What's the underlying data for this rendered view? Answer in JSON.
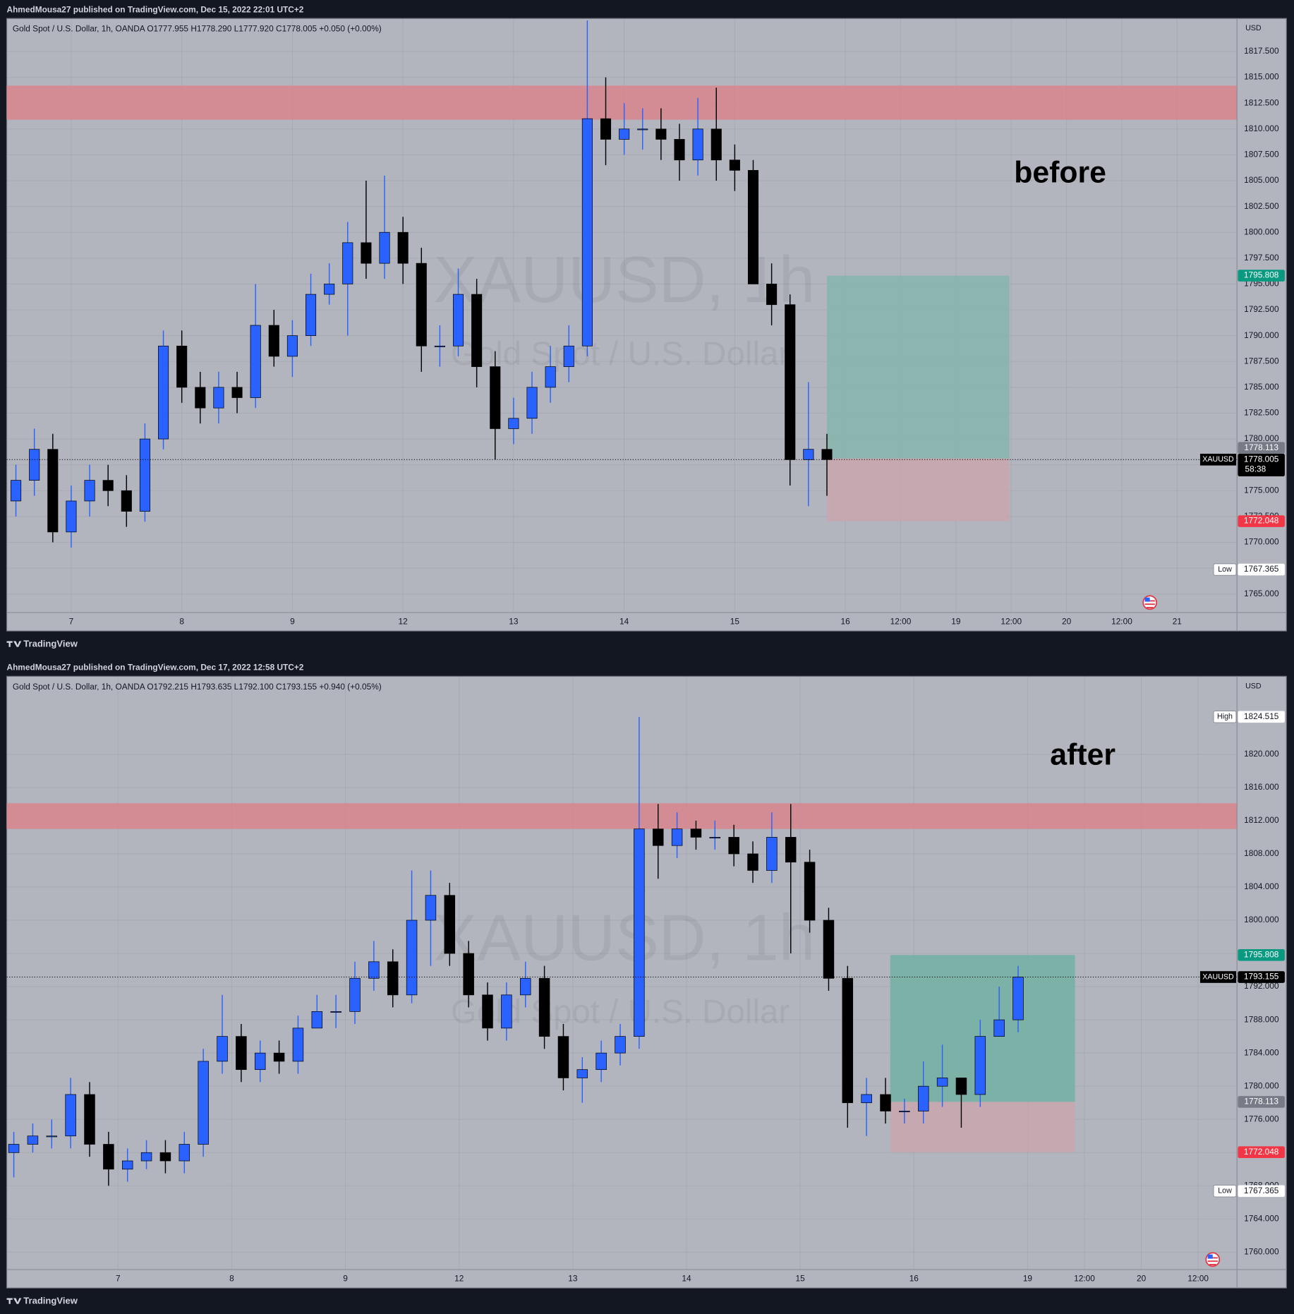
{
  "chart_data": [
    {
      "type": "candlestick",
      "caption": "AhmedMousa27 published on TradingView.com, Dec 15, 2022 22:01 UTC+2",
      "title": "Gold Spot / U.S. Dollar, 1h, OANDA  O1777.955  H1778.290  L1777.920  C1778.005  +0.050 (+0.00%)",
      "watermark": [
        "XAUUSD, 1h",
        "Gold Spot / U.S. Dollar"
      ],
      "annotation": "before",
      "currency": "USD",
      "footer": "TradingView",
      "symbol": "XAUUSD",
      "countdown": "58:38",
      "x": [
        -12,
        -8,
        -4,
        0,
        4,
        8,
        12,
        16,
        20,
        24,
        28,
        32,
        36,
        40,
        44,
        48,
        52,
        56,
        60,
        64,
        68,
        72,
        76,
        80,
        84,
        88,
        92,
        96,
        100,
        104,
        108,
        112,
        116,
        120,
        124,
        128,
        132,
        136,
        140,
        144,
        148,
        152,
        156,
        160,
        164
      ],
      "open": [
        1774,
        1776,
        1779,
        1771,
        1774,
        1776,
        1775,
        1773,
        1780,
        1789,
        1785,
        1783,
        1785,
        1784,
        1791,
        1788,
        1790,
        1794,
        1795,
        1799,
        1797,
        1800,
        1797,
        1789,
        1789,
        1794,
        1787,
        1781,
        1782,
        1785,
        1787,
        1789,
        1811,
        1809,
        1810,
        1810,
        1809,
        1807,
        1810,
        1807,
        1806,
        1795,
        1793,
        1778,
        1779
      ],
      "high": [
        1777.5,
        1781,
        1780.5,
        1775.5,
        1777.5,
        1777.5,
        1776.5,
        1781.5,
        1790.5,
        1790.5,
        1786.5,
        1786.5,
        1786.5,
        1795,
        1792.5,
        1791.5,
        1796,
        1797,
        1801,
        1805,
        1805.5,
        1801.5,
        1798.5,
        1791,
        1796.5,
        1795.5,
        1788.5,
        1784,
        1786.5,
        1789,
        1791,
        1820.5,
        1815,
        1812.5,
        1812,
        1812,
        1810.5,
        1813,
        1814,
        1808.5,
        1807,
        1797,
        1794,
        1785.5,
        1780.5
      ],
      "low": [
        1772.5,
        1774.5,
        1770,
        1769.5,
        1772.5,
        1773.5,
        1771.5,
        1772,
        1779,
        1783.5,
        1781.5,
        1781.5,
        1782.5,
        1783,
        1787,
        1786,
        1789,
        1793,
        1790,
        1795.5,
        1795.5,
        1795,
        1786.5,
        1787,
        1788,
        1785,
        1778,
        1779.5,
        1780.5,
        1783.5,
        1785.5,
        1788,
        1806.5,
        1807.5,
        1808,
        1807,
        1805,
        1805.5,
        1805,
        1804,
        1795,
        1791,
        1775.5,
        1773.5,
        1774.5
      ],
      "close": [
        1776,
        1779,
        1771,
        1774,
        1776,
        1775,
        1773,
        1780,
        1789,
        1785,
        1783,
        1785,
        1784,
        1791,
        1788,
        1790,
        1794,
        1795,
        1799,
        1797,
        1800,
        1797,
        1789,
        1789,
        1794,
        1787,
        1781,
        1782,
        1785,
        1787,
        1789,
        1811,
        1809,
        1810,
        1810,
        1809,
        1807,
        1810,
        1807,
        1806,
        1795,
        1793,
        1778,
        1779,
        1778.005
      ],
      "up_color": "#2962ff",
      "down_color": "#000000",
      "xlim": [
        -14,
        253
      ],
      "ylim": [
        1763.2,
        1820.7
      ],
      "xticks": [
        {
          "value": 0,
          "label": "7"
        },
        {
          "value": 24,
          "label": "8"
        },
        {
          "value": 48,
          "label": "9"
        },
        {
          "value": 72,
          "label": "12"
        },
        {
          "value": 96,
          "label": "13"
        },
        {
          "value": 120,
          "label": "14"
        },
        {
          "value": 144,
          "label": "15"
        },
        {
          "value": 168,
          "label": "16"
        },
        {
          "value": 180,
          "label": "12:00"
        },
        {
          "value": 192,
          "label": "19"
        },
        {
          "value": 204,
          "label": "12:00"
        },
        {
          "value": 216,
          "label": "20"
        },
        {
          "value": 228,
          "label": "12:00"
        },
        {
          "value": 240,
          "label": "21"
        }
      ],
      "yticks": [
        {
          "value": 1765,
          "label": "1765.000"
        },
        {
          "value": 1767.5,
          "label": "1767.500"
        },
        {
          "value": 1770,
          "label": "1770.000"
        },
        {
          "value": 1772.5,
          "label": "1772.500"
        },
        {
          "value": 1775,
          "label": "1775.000"
        },
        {
          "value": 1777.5,
          "label": "1777.500"
        },
        {
          "value": 1780,
          "label": "1780.000"
        },
        {
          "value": 1782.5,
          "label": "1782.500"
        },
        {
          "value": 1785,
          "label": "1785.000"
        },
        {
          "value": 1787.5,
          "label": "1787.500"
        },
        {
          "value": 1790,
          "label": "1790.000"
        },
        {
          "value": 1792.5,
          "label": "1792.500"
        },
        {
          "value": 1795,
          "label": "1795.000"
        },
        {
          "value": 1797.5,
          "label": "1797.500"
        },
        {
          "value": 1800,
          "label": "1800.000"
        },
        {
          "value": 1802.5,
          "label": "1802.500"
        },
        {
          "value": 1805,
          "label": "1805.000"
        },
        {
          "value": 1807.5,
          "label": "1807.500"
        },
        {
          "value": 1810,
          "label": "1810.000"
        },
        {
          "value": 1812.5,
          "label": "1812.500"
        },
        {
          "value": 1815,
          "label": "1815.000"
        },
        {
          "value": 1817.5,
          "label": "1817.500"
        }
      ],
      "grid": true,
      "zones": [
        {
          "from": 1810.9,
          "to": 1814.2,
          "color": "#d8848d"
        }
      ],
      "position": {
        "x": [
          164,
          203.6
        ],
        "entry": 1778.113,
        "target": 1795.808,
        "stop": 1772.048,
        "target_color": "#86b5ad",
        "stop_color": "#c8a6ae"
      },
      "extremes": [
        {
          "label": "Low",
          "value": 1767.365
        }
      ]
    },
    {
      "type": "candlestick",
      "caption": "AhmedMousa27 published on TradingView.com, Dec 17, 2022 12:58 UTC+2",
      "title": "Gold Spot / U.S. Dollar, 1h, OANDA  O1792.215  H1793.635  L1792.100  C1793.155  +0.940 (+0.05%)",
      "watermark": [
        "XAUUSD, 1h",
        "Gold Spot / U.S. Dollar"
      ],
      "annotation": "after",
      "currency": "USD",
      "footer": "TradingView",
      "symbol": "XAUUSD",
      "x": [
        -22,
        -18,
        -14,
        -10,
        -6,
        -2,
        2,
        6,
        10,
        14,
        18,
        22,
        26,
        30,
        34,
        38,
        42,
        46,
        50,
        54,
        58,
        62,
        66,
        70,
        74,
        78,
        82,
        86,
        90,
        94,
        98,
        102,
        106,
        110,
        114,
        118,
        122,
        126,
        130,
        134,
        138,
        142,
        146,
        150,
        154,
        158,
        162,
        166,
        170,
        174,
        178,
        182,
        186,
        190
      ],
      "open": [
        1772,
        1773,
        1774,
        1774,
        1779,
        1773,
        1770,
        1771,
        1772,
        1771,
        1773,
        1783,
        1786,
        1782,
        1784,
        1783,
        1787,
        1789,
        1789,
        1793,
        1795,
        1791,
        1800,
        1803,
        1796,
        1791,
        1787,
        1791,
        1793,
        1786,
        1781,
        1782,
        1784,
        1786,
        1811,
        1809,
        1811,
        1810,
        1810,
        1808,
        1806,
        1810,
        1807,
        1800,
        1793,
        1778,
        1779,
        1777,
        1777,
        1780,
        1781,
        1779,
        1786,
        1788
      ],
      "high": [
        1774.5,
        1775.5,
        1776,
        1781,
        1780.5,
        1774.5,
        1772.5,
        1773.5,
        1773.5,
        1774.5,
        1784.5,
        1791,
        1787.5,
        1785.5,
        1785.5,
        1788.5,
        1791,
        1791,
        1795,
        1797.5,
        1796.5,
        1806,
        1806,
        1804.5,
        1797.5,
        1792.5,
        1792.5,
        1795,
        1794.5,
        1787.5,
        1783.5,
        1785.5,
        1787.5,
        1824.5,
        1814,
        1813,
        1812,
        1812,
        1811.5,
        1809.5,
        1813,
        1814,
        1808.5,
        1801.5,
        1794.5,
        1781,
        1781,
        1778.5,
        1783,
        1785,
        1781,
        1788,
        1792,
        1794.5
      ],
      "low": [
        1769,
        1772,
        1772.5,
        1772.5,
        1771.5,
        1768,
        1768.5,
        1770,
        1769.5,
        1769.5,
        1771.5,
        1781.5,
        1780.5,
        1780.5,
        1781.5,
        1781.5,
        1787.5,
        1787,
        1787.5,
        1791.5,
        1789.5,
        1790,
        1794.5,
        1794.5,
        1789.5,
        1785.5,
        1785.5,
        1789.5,
        1784.5,
        1779.5,
        1778,
        1780.5,
        1782.5,
        1784.5,
        1805,
        1807.5,
        1808.5,
        1808.5,
        1806.5,
        1804.5,
        1804.5,
        1796,
        1798.5,
        1791.5,
        1775,
        1774,
        1775.5,
        1775.5,
        1775.5,
        1777.5,
        1775,
        1777.5,
        1786.5,
        1786.5
      ],
      "close": [
        1773,
        1774,
        1774,
        1779,
        1773,
        1770,
        1771,
        1772,
        1771,
        1773,
        1783,
        1786,
        1782,
        1784,
        1783,
        1787,
        1789,
        1789,
        1793,
        1795,
        1791,
        1800,
        1803,
        1796,
        1791,
        1787,
        1791,
        1793,
        1786,
        1781,
        1782,
        1784,
        1786,
        1811,
        1809,
        1811,
        1810,
        1810,
        1808,
        1806,
        1810,
        1807,
        1800,
        1793,
        1778,
        1779,
        1777,
        1777,
        1780,
        1781,
        1779,
        1786,
        1788,
        1793.155
      ],
      "up_color": "#2962ff",
      "down_color": "#000000",
      "xlim": [
        -23.5,
        236.2
      ],
      "ylim": [
        1757.9,
        1829.4
      ],
      "xticks": [
        {
          "value": 0,
          "label": "7"
        },
        {
          "value": 24,
          "label": "8"
        },
        {
          "value": 48,
          "label": "9"
        },
        {
          "value": 72,
          "label": "12"
        },
        {
          "value": 96,
          "label": "13"
        },
        {
          "value": 120,
          "label": "14"
        },
        {
          "value": 144,
          "label": "15"
        },
        {
          "value": 168,
          "label": "16"
        },
        {
          "value": 192,
          "label": "19"
        },
        {
          "value": 204,
          "label": "12:00"
        },
        {
          "value": 216,
          "label": "20"
        },
        {
          "value": 228,
          "label": "12:00"
        }
      ],
      "yticks": [
        {
          "value": 1760,
          "label": "1760.000"
        },
        {
          "value": 1764,
          "label": "1764.000"
        },
        {
          "value": 1768,
          "label": "1768.000"
        },
        {
          "value": 1772,
          "label": "1772.000"
        },
        {
          "value": 1776,
          "label": "1776.000"
        },
        {
          "value": 1780,
          "label": "1780.000"
        },
        {
          "value": 1784,
          "label": "1784.000"
        },
        {
          "value": 1788,
          "label": "1788.000"
        },
        {
          "value": 1792,
          "label": "1792.000"
        },
        {
          "value": 1796,
          "label": "1796.000"
        },
        {
          "value": 1800,
          "label": "1800.000"
        },
        {
          "value": 1804,
          "label": "1804.000"
        },
        {
          "value": 1808,
          "label": "1808.000"
        },
        {
          "value": 1812,
          "label": "1812.000"
        },
        {
          "value": 1816,
          "label": "1816.000"
        },
        {
          "value": 1820,
          "label": "1820.000"
        }
      ],
      "grid": true,
      "zones": [
        {
          "from": 1811.0,
          "to": 1814.1,
          "color": "#d8848d"
        }
      ],
      "position": {
        "x": [
          163,
          202
        ],
        "entry": 1778.113,
        "target": 1795.808,
        "stop": 1772.048,
        "target_color": "#72b0a3",
        "stop_color": "#c8a6ae"
      },
      "extremes": [
        {
          "label": "High",
          "value": 1824.515
        },
        {
          "label": "Low",
          "value": 1767.365
        }
      ]
    }
  ]
}
